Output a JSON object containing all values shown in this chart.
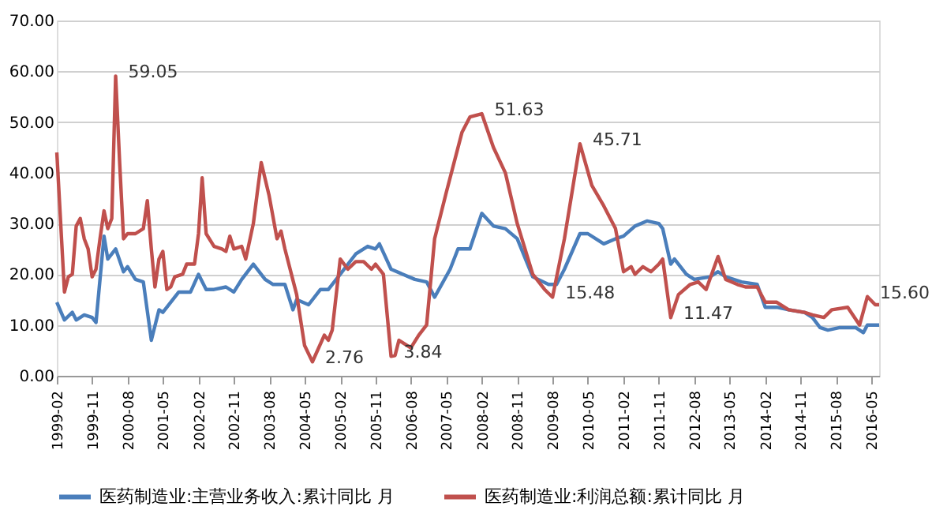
{
  "chart_data": {
    "type": "line",
    "xlim": [
      "1999-02",
      "2016-07"
    ],
    "xticks": [
      "1999-02",
      "1999-11",
      "2000-08",
      "2001-05",
      "2002-02",
      "2002-11",
      "2003-08",
      "2004-05",
      "2005-02",
      "2005-11",
      "2006-08",
      "2007-05",
      "2008-02",
      "2008-11",
      "2009-08",
      "2010-05",
      "2011-02",
      "2011-11",
      "2012-08",
      "2013-05",
      "2014-02",
      "2014-11",
      "2015-08",
      "2016-05"
    ],
    "ylim": [
      0,
      70
    ],
    "yticks": [
      {
        "value": 0,
        "label": "0.00"
      },
      {
        "value": 10,
        "label": "10.00"
      },
      {
        "value": 20,
        "label": "20.00"
      },
      {
        "value": 30,
        "label": "30.00"
      },
      {
        "value": 40,
        "label": "40.00"
      },
      {
        "value": 50,
        "label": "50.00"
      },
      {
        "value": 60,
        "label": "60.00"
      },
      {
        "value": 70,
        "label": "70.00"
      }
    ],
    "grid": "y",
    "legend": "bottom",
    "marker": "none",
    "line_style": "solid",
    "series": [
      {
        "name": "医药制造业:主营业务收入:累计同比 月",
        "color": "#4a7ebb",
        "x": [
          "1999-02",
          "1999-04",
          "1999-06",
          "1999-07",
          "1999-09",
          "1999-11",
          "1999-12",
          "2000-02",
          "2000-03",
          "2000-05",
          "2000-07",
          "2000-08",
          "2000-10",
          "2000-12",
          "2001-02",
          "2001-04",
          "2001-05",
          "2001-07",
          "2001-09",
          "2001-12",
          "2002-02",
          "2002-04",
          "2002-06",
          "2002-09",
          "2002-11",
          "2003-01",
          "2003-04",
          "2003-07",
          "2003-09",
          "2003-12",
          "2004-02",
          "2004-03",
          "2004-06",
          "2004-09",
          "2004-11",
          "2005-02",
          "2005-06",
          "2005-09",
          "2005-11",
          "2005-12",
          "2006-03",
          "2006-06",
          "2006-09",
          "2006-12",
          "2007-02",
          "2007-06",
          "2007-08",
          "2007-11",
          "2008-02",
          "2008-05",
          "2008-08",
          "2008-11",
          "2009-03",
          "2009-07",
          "2009-09",
          "2009-11",
          "2010-03",
          "2010-05",
          "2010-09",
          "2010-12",
          "2011-02",
          "2011-05",
          "2011-08",
          "2011-11",
          "2011-12",
          "2012-02",
          "2012-03",
          "2012-06",
          "2012-08",
          "2012-12",
          "2013-02",
          "2013-04",
          "2013-08",
          "2013-12",
          "2014-02",
          "2014-05",
          "2014-08",
          "2014-12",
          "2015-02",
          "2015-04",
          "2015-06",
          "2015-09",
          "2016-01",
          "2016-03",
          "2016-04",
          "2016-07"
        ],
        "values": [
          14.5,
          11,
          12.5,
          11,
          12,
          11.5,
          10.5,
          27.5,
          23,
          25,
          20.5,
          21.5,
          19,
          18.5,
          7,
          13,
          12.5,
          14.5,
          16.5,
          16.5,
          20,
          17,
          17,
          17.5,
          16.5,
          19,
          22,
          19,
          18,
          18,
          13,
          15,
          14,
          17,
          17,
          20,
          24,
          25.5,
          25,
          26,
          21,
          20,
          19,
          18.5,
          15.5,
          21,
          25,
          25,
          32,
          29.5,
          29,
          27,
          19.5,
          18,
          18,
          21,
          28,
          28,
          26,
          27,
          27.5,
          29.5,
          30.5,
          30,
          29,
          22,
          23,
          20,
          19,
          19.5,
          20.5,
          19.5,
          18.5,
          18,
          13.5,
          13.5,
          13,
          12.5,
          11.5,
          9.5,
          9,
          9.5,
          9.5,
          8.5,
          10,
          10
        ]
      },
      {
        "name": "医药制造业:利润总额:累计同比 月",
        "color": "#c0504d",
        "x": [
          "1999-02",
          "1999-04",
          "1999-05",
          "1999-06",
          "1999-07",
          "1999-08",
          "1999-09",
          "1999-10",
          "1999-11",
          "1999-12",
          "2000-01",
          "2000-02",
          "2000-03",
          "2000-04",
          "2000-05",
          "2000-06",
          "2000-07",
          "2000-08",
          "2000-10",
          "2000-12",
          "2001-01",
          "2001-02",
          "2001-03",
          "2001-04",
          "2001-05",
          "2001-06",
          "2001-07",
          "2001-08",
          "2001-10",
          "2001-11",
          "2002-01",
          "2002-02",
          "2002-03",
          "2002-04",
          "2002-06",
          "2002-08",
          "2002-09",
          "2002-10",
          "2002-11",
          "2003-01",
          "2003-02",
          "2003-04",
          "2003-05",
          "2003-06",
          "2003-08",
          "2003-10",
          "2003-11",
          "2003-12",
          "2004-03",
          "2004-05",
          "2004-07",
          "2004-10",
          "2004-11",
          "2004-12",
          "2005-02",
          "2005-04",
          "2005-06",
          "2005-08",
          "2005-10",
          "2005-11",
          "2006-01",
          "2006-03",
          "2006-04",
          "2006-05",
          "2006-08",
          "2006-10",
          "2006-12",
          "2007-02",
          "2007-05",
          "2007-09",
          "2007-11",
          "2008-02",
          "2008-05",
          "2008-08",
          "2008-11",
          "2009-03",
          "2009-06",
          "2009-08",
          "2009-11",
          "2010-03",
          "2010-06",
          "2010-09",
          "2010-12",
          "2011-02",
          "2011-04",
          "2011-05",
          "2011-07",
          "2011-09",
          "2011-11",
          "2011-12",
          "2012-02",
          "2012-04",
          "2012-07",
          "2012-09",
          "2012-11",
          "2013-02",
          "2013-04",
          "2013-07",
          "2013-09",
          "2013-12",
          "2014-02",
          "2014-05",
          "2014-08",
          "2014-12",
          "2015-02",
          "2015-05",
          "2015-07",
          "2015-11",
          "2016-02",
          "2016-04",
          "2016-06",
          "2016-07"
        ],
        "values": [
          44,
          16.5,
          19.5,
          20,
          29.5,
          31,
          27,
          25,
          19.5,
          21,
          27,
          32.5,
          29,
          31,
          59.05,
          42,
          27,
          28,
          28,
          29,
          34.5,
          25,
          17.5,
          23,
          24.5,
          17,
          17.5,
          19.5,
          20,
          22,
          22,
          28,
          39,
          28,
          25.5,
          25,
          24.5,
          27.5,
          25,
          25.5,
          23,
          30,
          36,
          42,
          35.5,
          27,
          28.5,
          25,
          16,
          6,
          2.76,
          8,
          7,
          9,
          23,
          21,
          22.5,
          22.5,
          21,
          22,
          20,
          3.84,
          4,
          7,
          5.5,
          8,
          10,
          27,
          36,
          48,
          51,
          51.63,
          45,
          40,
          30,
          20,
          17,
          15.48,
          27,
          45.71,
          37.5,
          33.5,
          29,
          20.5,
          21.5,
          20,
          21.5,
          20.5,
          22,
          23,
          11.47,
          16,
          18,
          18.5,
          17,
          23.5,
          19,
          18,
          17.5,
          17.5,
          14.5,
          14.5,
          13,
          12.5,
          12,
          11.5,
          13,
          13.5,
          10,
          15.6,
          14,
          14
        ]
      }
    ],
    "annotations": [
      {
        "text": "59.05",
        "x": "2000-05",
        "y": 59.05
      },
      {
        "text": "2.76",
        "x": "2004-07",
        "y": 2.76
      },
      {
        "text": "3.84",
        "x": "2006-03",
        "y": 3.84
      },
      {
        "text": "51.63",
        "x": "2008-02",
        "y": 51.63
      },
      {
        "text": "45.71",
        "x": "2010-03",
        "y": 45.71
      },
      {
        "text": "15.48",
        "x": "2009-08",
        "y": 15.48
      },
      {
        "text": "11.47",
        "x": "2012-02",
        "y": 11.47
      },
      {
        "text": "15.60",
        "x": "2016-04",
        "y": 15.6
      }
    ]
  }
}
